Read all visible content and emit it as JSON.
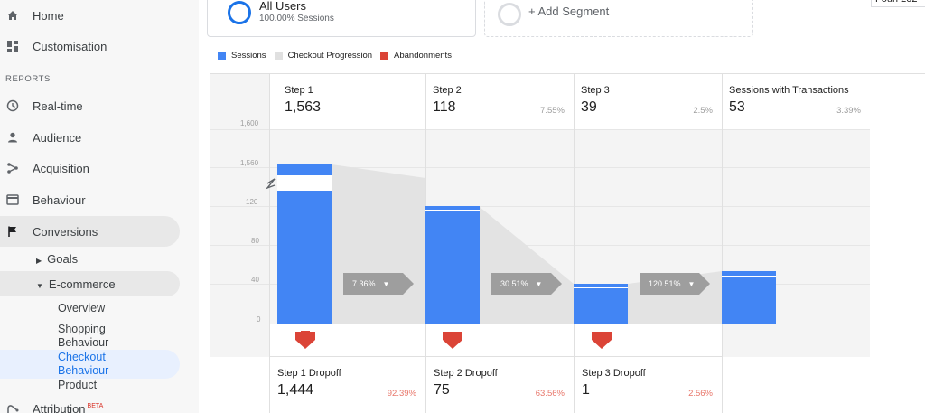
{
  "sidebar": {
    "home": "Home",
    "customisation": "Customisation",
    "reports_label": "REPORTS",
    "realtime": "Real-time",
    "audience": "Audience",
    "acquisition": "Acquisition",
    "behaviour": "Behaviour",
    "conversions": "Conversions",
    "goals": "Goals",
    "ecommerce": "E-commerce",
    "overview": "Overview",
    "shopping_behaviour_1": "Shopping",
    "shopping_behaviour_2": "Behaviour",
    "checkout_behaviour_1": "Checkout",
    "checkout_behaviour_2": "Behaviour",
    "product": "Product",
    "attribution": "Attribution",
    "beta": "BETA"
  },
  "segments": {
    "all_users_title": "All Users",
    "all_users_sub": "100.00% Sessions",
    "add_segment": "+ Add Segment"
  },
  "date_partial": "Fouri 202",
  "legend": {
    "sessions": "Sessions",
    "checkout_progression": "Checkout Progression",
    "abandonments": "Abandonments",
    "colors": {
      "sessions": "#4285f4",
      "progression": "#e0e0e0",
      "abandonments": "#db4437"
    }
  },
  "chart_data": {
    "type": "bar",
    "y_ticks": [
      "1,600",
      "1,560",
      "120",
      "80",
      "40",
      "0"
    ],
    "steps": [
      {
        "label": "Step 1",
        "value": "1,563",
        "pct": ""
      },
      {
        "label": "Step 2",
        "value": "118",
        "pct": "7.55%"
      },
      {
        "label": "Step 3",
        "value": "39",
        "pct": "2.5%"
      },
      {
        "label": "Sessions with Transactions",
        "value": "53",
        "pct": "3.39%"
      }
    ],
    "sessions": [
      1563,
      118,
      39,
      53
    ],
    "progressions": [
      "7.36%",
      "30.51%",
      "120.51%"
    ],
    "dropoffs": [
      {
        "label": "Step 1 Dropoff",
        "value": "1,444",
        "pct": "92.39%"
      },
      {
        "label": "Step 2 Dropoff",
        "value": "75",
        "pct": "63.56%"
      },
      {
        "label": "Step 3 Dropoff",
        "value": "1",
        "pct": "2.56%"
      }
    ]
  }
}
